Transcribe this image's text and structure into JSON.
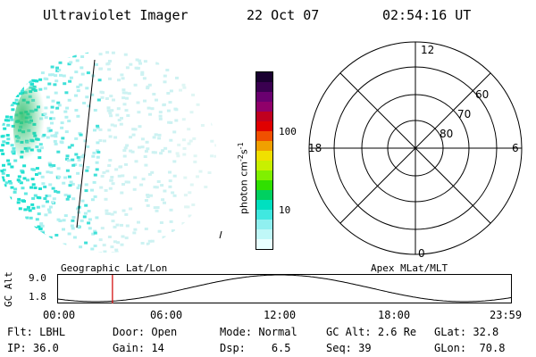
{
  "header": {
    "instrument": "Ultraviolet Imager",
    "date": "22 Oct 07",
    "time": "02:54:16 UT"
  },
  "colorbar": {
    "unit_label": "photon cm",
    "unit_sup1": "-2",
    "unit_mid": "s",
    "unit_sup2": "-1",
    "ticks": [
      "100",
      "10"
    ],
    "colors": [
      "#1a0030",
      "#3a0050",
      "#6a0070",
      "#90006a",
      "#c00020",
      "#e00000",
      "#f05000",
      "#f0a000",
      "#f0e000",
      "#c8f000",
      "#80f000",
      "#30e000",
      "#00d060",
      "#00e0c0",
      "#40e8e0",
      "#90f0f0",
      "#c0f8f8",
      "#e8ffff"
    ]
  },
  "polar": {
    "top_label": "12",
    "left_label": "18",
    "right_label": "6",
    "bottom_label": "0",
    "lat_labels": [
      "60",
      "70",
      "80"
    ]
  },
  "timeline": {
    "ylabel": "GC Alt",
    "y_ticks": [
      "9.0",
      "1.8"
    ],
    "left_caption": "Geographic Lat/Lon",
    "right_caption": "Apex MLat/MLT",
    "x_ticks": [
      "00:00",
      "06:00",
      "12:00",
      "18:00",
      "23:59"
    ],
    "marker_time": "02:54",
    "line_color": "#000000",
    "marker_color": "#d00000"
  },
  "status": {
    "row1": [
      {
        "label": "Flt:",
        "value": "LBHL"
      },
      {
        "label": "Door:",
        "value": "Open"
      },
      {
        "label": "Mode:",
        "value": "Normal"
      },
      {
        "label": "GC Alt:",
        "value": "2.6 Re"
      },
      {
        "label": "GLat:",
        "value": "32.8"
      }
    ],
    "row2": [
      {
        "label": "IP:",
        "value": "36.0"
      },
      {
        "label": "Gain:",
        "value": "14"
      },
      {
        "label": "Dsp:",
        "value": "6.5"
      },
      {
        "label": "Seq:",
        "value": "39"
      },
      {
        "label": "GLon:",
        "value": "70.8"
      }
    ]
  }
}
